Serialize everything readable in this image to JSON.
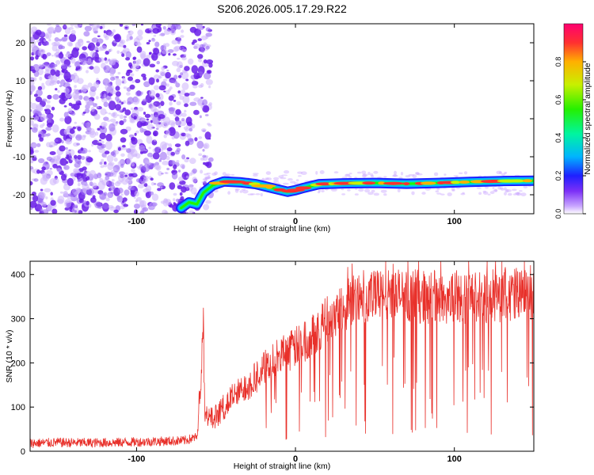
{
  "title": "S206.2026.005.17.29.R22",
  "colors": {
    "speckle": "#7b2ff7",
    "snr_line": "#e8302a",
    "background": "#ffffff"
  },
  "chart_data": [
    {
      "type": "heatmap",
      "title": "S206.2026.005.17.29.R22",
      "xlabel": "Height of straight line (km)",
      "ylabel": "Frequency (Hz)",
      "xlim": [
        -167,
        150
      ],
      "ylim": [
        -25,
        25
      ],
      "x_ticks": [
        -100,
        0,
        100
      ],
      "x_tick_labels": [
        "-100",
        "0",
        "100"
      ],
      "y_ticks": [
        -20,
        -10,
        0,
        10,
        20
      ],
      "y_tick_labels": [
        "-20",
        "-10",
        "0",
        "10",
        "20"
      ],
      "colorbar": {
        "label": "Normalized spectral amplitude",
        "range": [
          0,
          1
        ],
        "ticks": [
          0.0,
          0.2,
          0.4,
          0.6,
          0.8
        ],
        "tick_labels": [
          "0.0",
          "0.2",
          "0.4",
          "0.6",
          "0.8"
        ]
      },
      "noise_region_x": [
        -167,
        -68
      ],
      "ridge": {
        "x": [
          -72,
          -67,
          -62,
          -58,
          -52,
          -45,
          -35,
          -25,
          -15,
          -5,
          0,
          5,
          15,
          30,
          50,
          70,
          90,
          110,
          130,
          150
        ],
        "freq_hz": [
          -23.5,
          -22,
          -22.5,
          -19.5,
          -17.5,
          -16.5,
          -16.7,
          -17.2,
          -18.2,
          -19.2,
          -18.8,
          -18.2,
          -17.2,
          -17.0,
          -16.9,
          -17.1,
          -16.9,
          -16.6,
          -16.4,
          -16.3
        ]
      }
    },
    {
      "type": "line",
      "xlabel": "Height of straight line (km)",
      "ylabel": "SNR (10 * v/v)",
      "xlim": [
        -167,
        150
      ],
      "ylim": [
        0,
        430
      ],
      "x_ticks": [
        -100,
        0,
        100
      ],
      "x_tick_labels": [
        "-100",
        "0",
        "100"
      ],
      "y_ticks": [
        0,
        100,
        200,
        300,
        400
      ],
      "y_tick_labels": [
        "0",
        "100",
        "200",
        "300",
        "400"
      ],
      "series": [
        {
          "name": "SNR",
          "x": [
            -167,
            -150,
            -130,
            -110,
            -90,
            -70,
            -62,
            -59,
            -58,
            -57,
            -55,
            -50,
            -40,
            -30,
            -20,
            -10,
            0,
            10,
            20,
            30,
            40,
            60,
            80,
            100,
            120,
            140,
            150
          ],
          "y": [
            18,
            20,
            19,
            20,
            22,
            24,
            32,
            200,
            290,
            90,
            70,
            80,
            120,
            150,
            185,
            215,
            235,
            260,
            300,
            330,
            345,
            355,
            350,
            345,
            350,
            355,
            350
          ]
        }
      ]
    }
  ]
}
